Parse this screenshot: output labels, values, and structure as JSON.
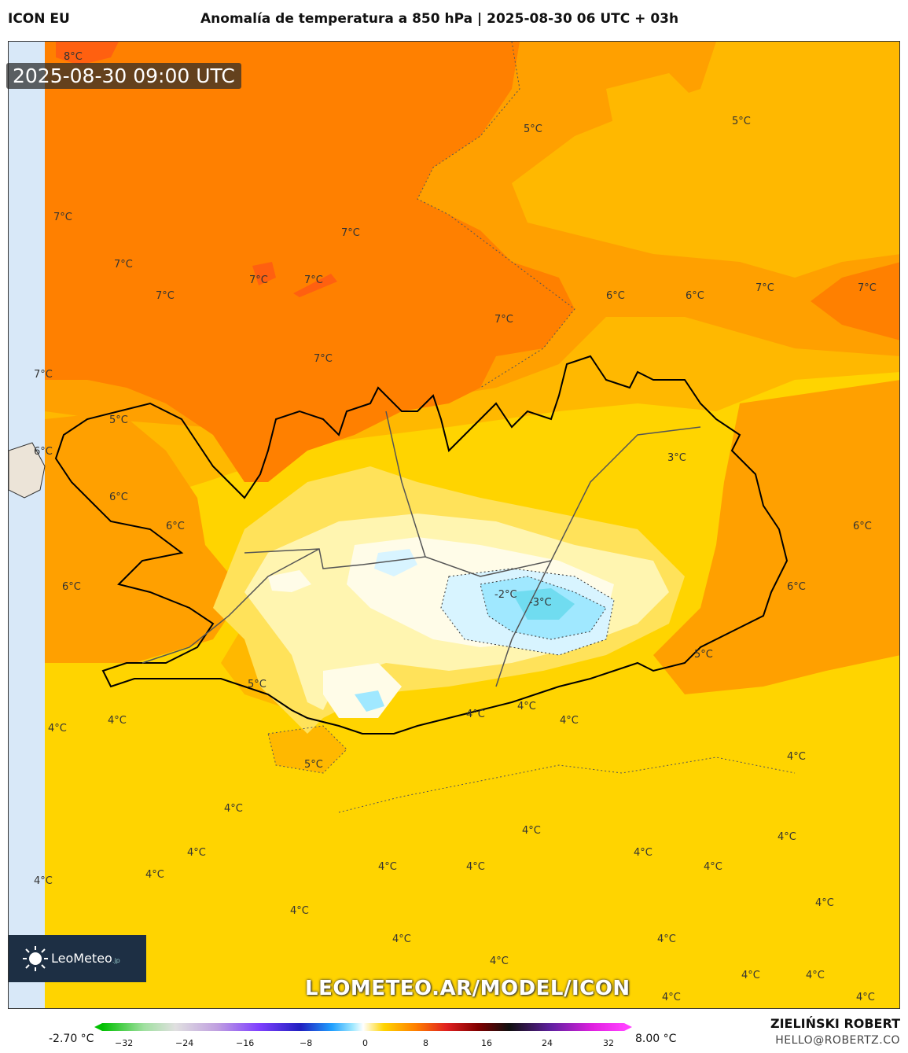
{
  "header": {
    "model": "ICON EU",
    "title": "Anomalía de temperatura a 850 hPa | 2025-08-30 06 UTC + 03h"
  },
  "timestamp": "2025-08-30 09:00 UTC",
  "watermark": "LEOMETEO.AR/MODEL/ICON",
  "logo": {
    "name": "LeoMeteo",
    "suffix": ".jp"
  },
  "colorbar": {
    "min_label": "-2.70 °C",
    "max_label": "8.00 °C",
    "ticks": [
      "−32",
      "−24",
      "−16",
      "−8",
      "0",
      "8",
      "16",
      "24",
      "32"
    ]
  },
  "author": {
    "name": "ZIELIŃSKI ROBERT",
    "contact": "HELLO@ROBERTZ.CO"
  },
  "map_labels": [
    {
      "text": "8°C"
    },
    {
      "text": "5°C"
    },
    {
      "text": "5°C"
    },
    {
      "text": "7°C"
    },
    {
      "text": "7°C"
    },
    {
      "text": "7°C"
    },
    {
      "text": "7°C"
    },
    {
      "text": "7°C"
    },
    {
      "text": "7°C"
    },
    {
      "text": "7°C"
    },
    {
      "text": "7°C"
    },
    {
      "text": "6°C"
    },
    {
      "text": "6°C"
    },
    {
      "text": "7°C"
    },
    {
      "text": "7°C"
    },
    {
      "text": "7°C"
    },
    {
      "text": "5°C"
    },
    {
      "text": "6°C"
    },
    {
      "text": "6°C"
    },
    {
      "text": "6°C"
    },
    {
      "text": "6°C"
    },
    {
      "text": "3°C"
    },
    {
      "text": "6°C"
    },
    {
      "text": "6°C"
    },
    {
      "text": "-2°C"
    },
    {
      "text": "-3°C"
    },
    {
      "text": "5°C"
    },
    {
      "text": "5°C"
    },
    {
      "text": "4°C"
    },
    {
      "text": "4°C"
    },
    {
      "text": "4°C"
    },
    {
      "text": "4°C"
    },
    {
      "text": "4°C"
    },
    {
      "text": "5°C"
    },
    {
      "text": "4°C"
    },
    {
      "text": "4°C"
    },
    {
      "text": "4°C"
    },
    {
      "text": "4°C"
    },
    {
      "text": "4°C"
    },
    {
      "text": "4°C"
    },
    {
      "text": "4°C"
    },
    {
      "text": "4°C"
    },
    {
      "text": "4°C"
    },
    {
      "text": "4°C"
    },
    {
      "text": "4°C"
    },
    {
      "text": "4°C"
    },
    {
      "text": "4°C"
    },
    {
      "text": "4°C"
    },
    {
      "text": "4°C"
    },
    {
      "text": "4°C"
    },
    {
      "text": "4°C"
    },
    {
      "text": "4°C"
    },
    {
      "text": "4°C"
    },
    {
      "text": "4°C"
    }
  ],
  "colors": {
    "warm_7": "#ff8000",
    "warm_6": "#ffa000",
    "warm_5": "#ffb800",
    "warm_4": "#ffd400",
    "cool_2": "#ffe870",
    "near_0": "#fffad0",
    "neg": "#a0e8ff",
    "neg_3": "#70dcf0",
    "coast": "#000000",
    "sea_edge": "#d8e8f8"
  }
}
